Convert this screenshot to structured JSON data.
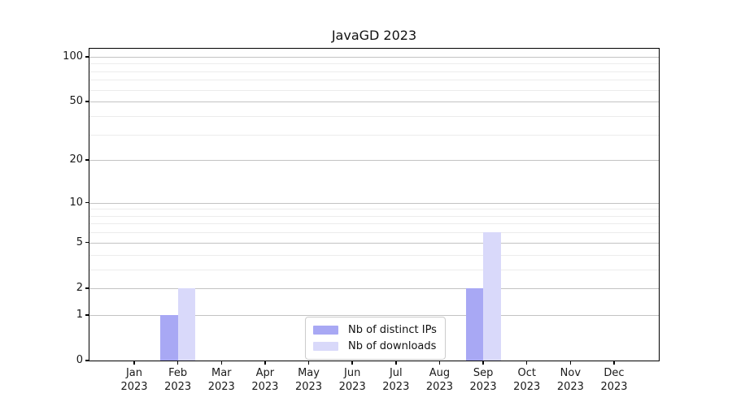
{
  "title": "JavaGD 2023",
  "chart_data": {
    "type": "bar",
    "title": "JavaGD 2023",
    "categories": [
      "Jan",
      "Feb",
      "Mar",
      "Apr",
      "May",
      "Jun",
      "Jul",
      "Aug",
      "Sep",
      "Oct",
      "Nov",
      "Dec"
    ],
    "x_year_label": "2023",
    "series": [
      {
        "name": "Nb of distinct IPs",
        "color": "#a8a8f4",
        "values": [
          0,
          1,
          0,
          0,
          0,
          0,
          0,
          0,
          2,
          0,
          0,
          0
        ]
      },
      {
        "name": "Nb of downloads",
        "color": "#d9d9fa",
        "values": [
          0,
          2,
          0,
          0,
          0,
          0,
          0,
          0,
          6,
          0,
          0,
          0
        ]
      }
    ],
    "y_axis": {
      "scale": "log1p",
      "ticks": [
        0,
        1,
        2,
        5,
        10,
        20,
        50,
        100
      ],
      "minor_gridlines": [
        3,
        4,
        6,
        7,
        8,
        9,
        30,
        40,
        60,
        70,
        80,
        90
      ],
      "ylim": [
        0,
        113
      ]
    },
    "grid": "horizontal",
    "legend_position": "bottom-center-inside"
  }
}
